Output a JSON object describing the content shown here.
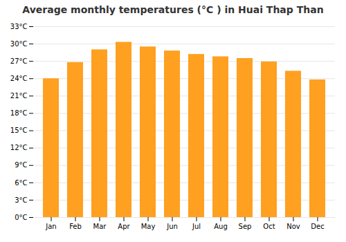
{
  "chart_data": {
    "type": "bar",
    "title": "Average monthly temperatures (°C ) in Huai Thap Than",
    "categories": [
      "Jan",
      "Feb",
      "Mar",
      "Apr",
      "May",
      "Jun",
      "Jul",
      "Aug",
      "Sep",
      "Oct",
      "Nov",
      "Dec"
    ],
    "values": [
      24.0,
      26.8,
      29.0,
      30.3,
      29.5,
      28.8,
      28.2,
      27.8,
      27.5,
      26.9,
      25.3,
      23.8
    ],
    "color": "#FFA020",
    "ylim": [
      0,
      33
    ],
    "yticks": [
      {
        "value": 0,
        "label": "0°C"
      },
      {
        "value": 3,
        "label": "3°C"
      },
      {
        "value": 6,
        "label": "6°C"
      },
      {
        "value": 9,
        "label": "9°C"
      },
      {
        "value": 12,
        "label": "12°C"
      },
      {
        "value": 15,
        "label": "15°C"
      },
      {
        "value": 18,
        "label": "18°C"
      },
      {
        "value": 21,
        "label": "21°C"
      },
      {
        "value": 24,
        "label": "24°C"
      },
      {
        "value": 27,
        "label": "27°C"
      },
      {
        "value": 30,
        "label": "30°C"
      },
      {
        "value": 33,
        "label": "33°C"
      }
    ],
    "grid": true
  }
}
